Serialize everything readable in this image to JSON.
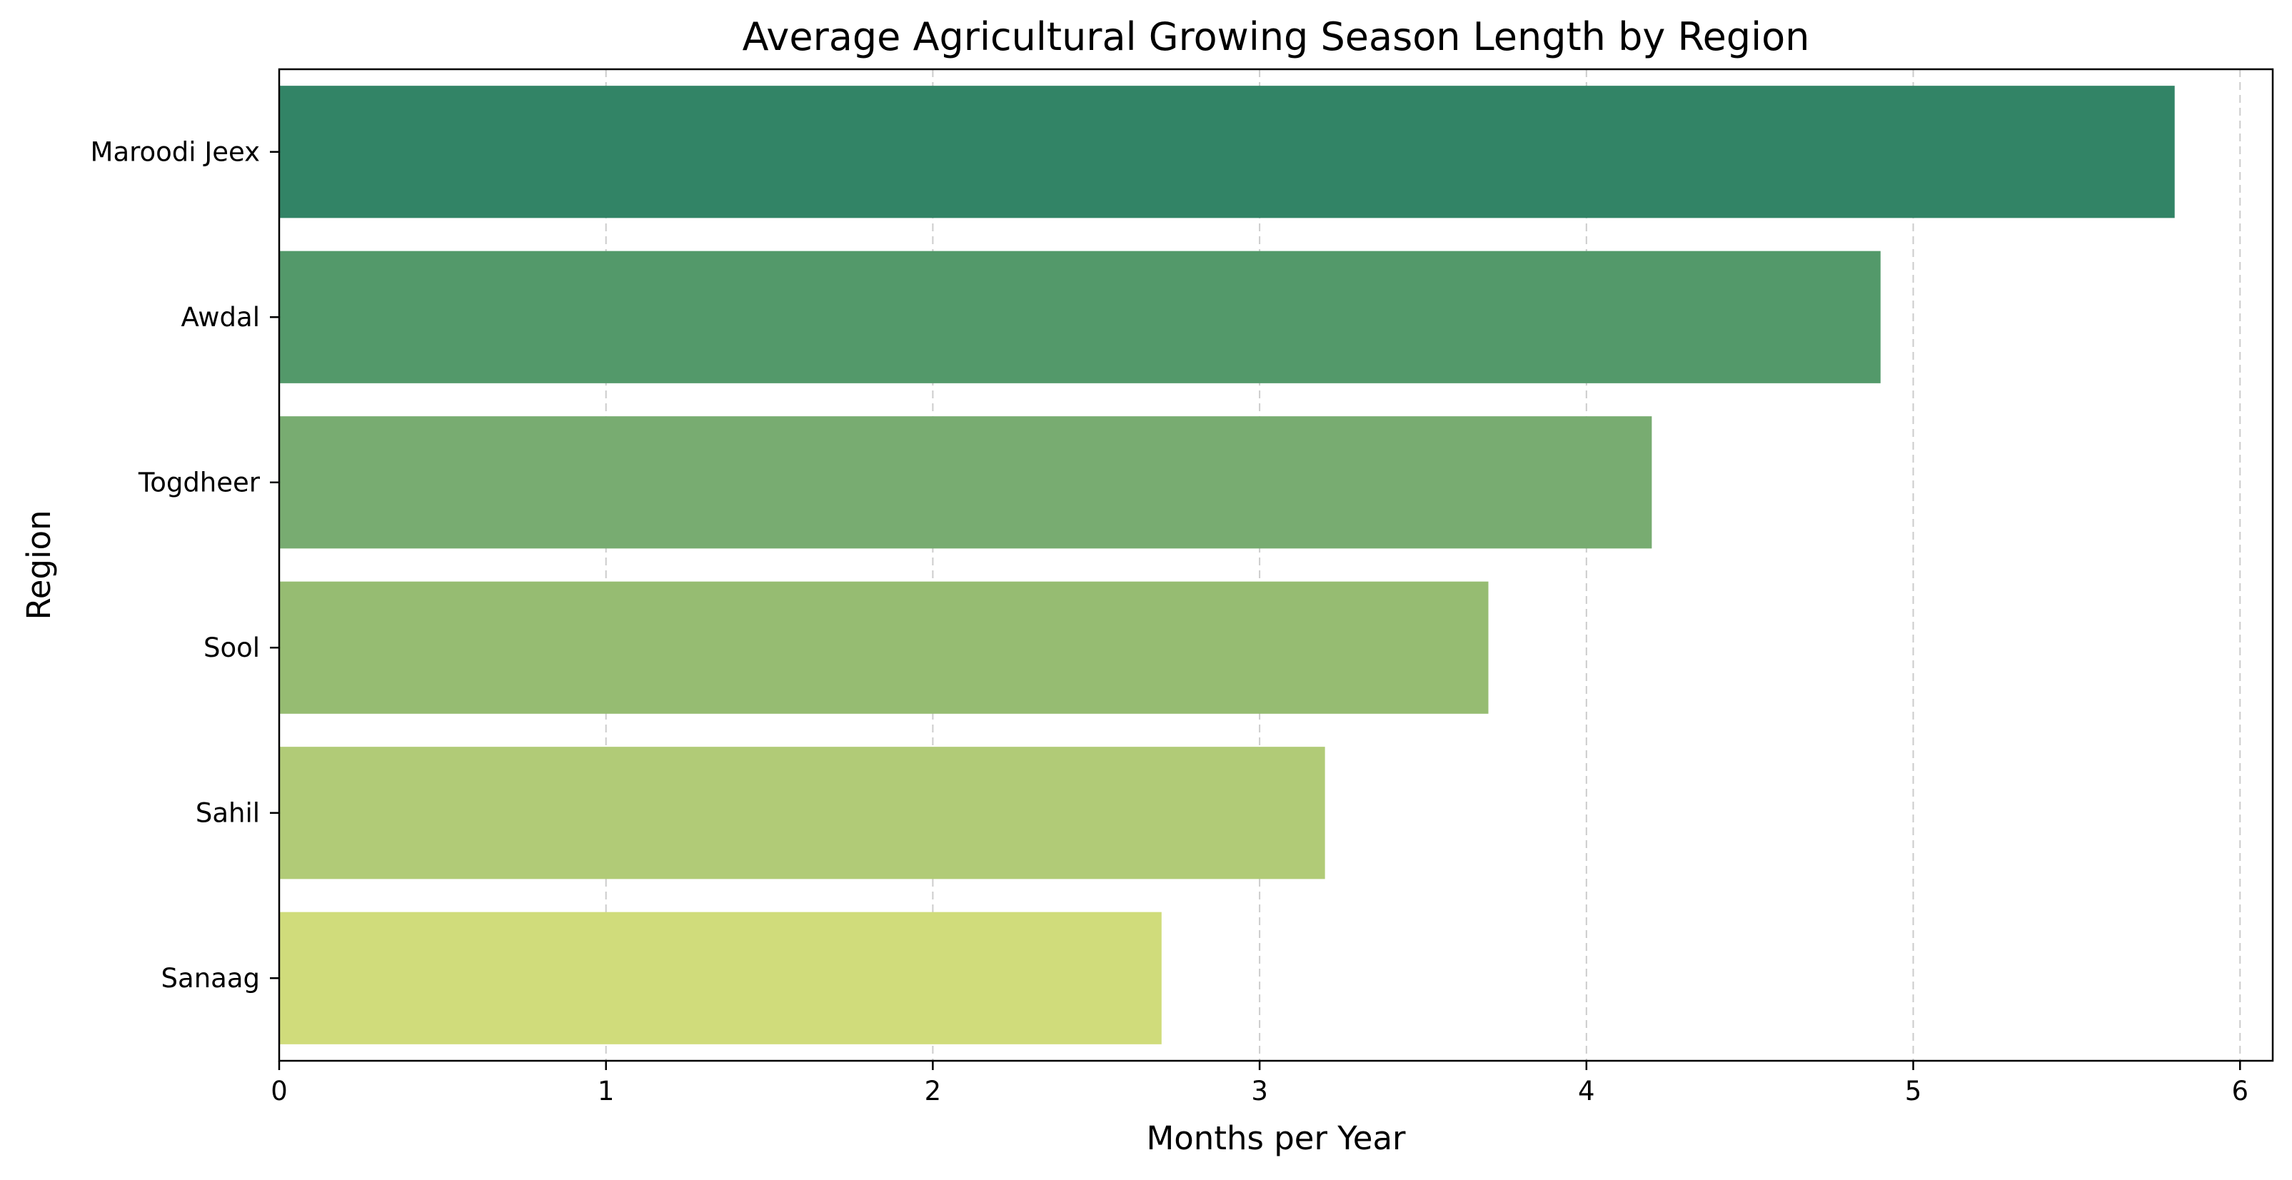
{
  "chart_data": {
    "type": "bar",
    "orientation": "horizontal",
    "title": "Average Agricultural Growing Season Length by Region",
    "xlabel": "Months per Year",
    "ylabel": "Region",
    "categories": [
      "Maroodi Jeex",
      "Awdal",
      "Togdheer",
      "Sool",
      "Sahil",
      "Sanaag"
    ],
    "values": [
      5.8,
      4.9,
      4.2,
      3.7,
      3.2,
      2.7
    ],
    "colors": [
      "#328466",
      "#53996a",
      "#78ac71",
      "#96bc72",
      "#b1cb77",
      "#d0dc7b"
    ],
    "xlim": [
      0,
      6.1
    ],
    "xticks": [
      0,
      1,
      2,
      3,
      4,
      5,
      6
    ],
    "grid": {
      "axis": "x",
      "style": "dashed",
      "color": "#cccccc"
    }
  }
}
